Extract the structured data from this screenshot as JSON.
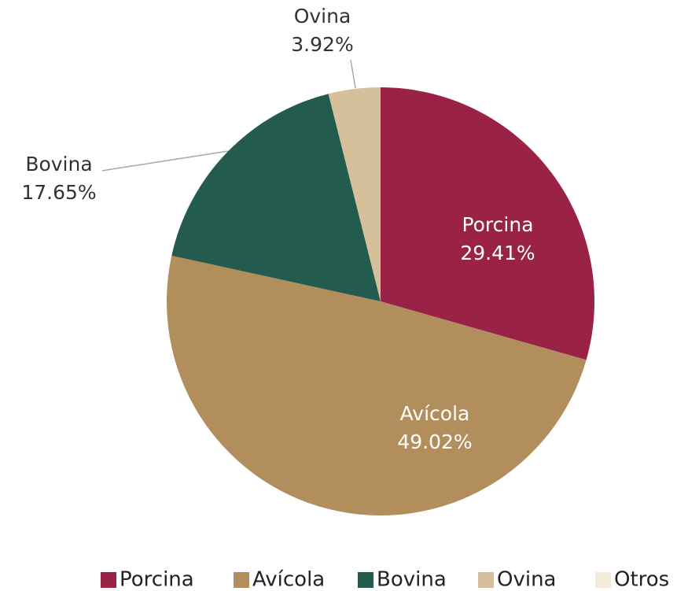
{
  "chart_data": {
    "type": "pie",
    "categories": [
      "Porcina",
      "Avícola",
      "Bovina",
      "Ovina",
      "Otros"
    ],
    "values": [
      29.41,
      49.02,
      17.65,
      3.92,
      0
    ],
    "value_labels": [
      "29.41%",
      "49.02%",
      "17.65%",
      "3.92%",
      null
    ],
    "colors": [
      "#9b2247",
      "#b38e5d",
      "#235b4e",
      "#d6c09b",
      "#f3ecdc"
    ],
    "legend": "bottom"
  }
}
